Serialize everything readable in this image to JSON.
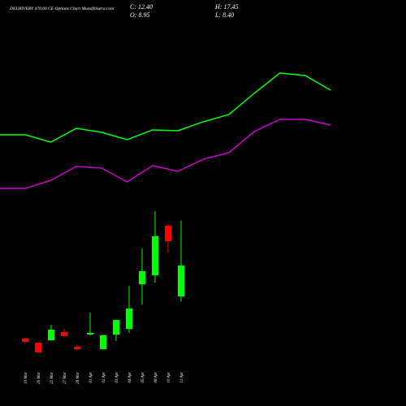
{
  "chart_data": [
    {
      "type": "candlestick",
      "title": "DELHIVERY 470.00 CE Options Chart MunafaSutra.com",
      "info": [
        "C: 12.40",
        "H: 17.45",
        "O: 8.95",
        "L: 8.40"
      ],
      "categories": [
        "19 Mar",
        "20 Mar",
        "22 Mar",
        "27 Mar",
        "28 Mar",
        "01 Apr",
        "02 Apr",
        "03 Apr",
        "04 Apr",
        "05 Apr",
        "08 Apr",
        "10 Apr",
        "12 Apr"
      ],
      "open": [
        4.22,
        3.77,
        4.04,
        4.95,
        3.31,
        4.68,
        3.04,
        4.68,
        5.31,
        10.31,
        11.31,
        16.86,
        8.95
      ],
      "high": [
        4.31,
        3.86,
        5.77,
        5.31,
        3.5,
        7.13,
        4.68,
        6.31,
        10.13,
        14.31,
        18.5,
        17.04,
        17.45
      ],
      "low": [
        3.77,
        2.68,
        4.04,
        4.5,
        2.95,
        4.59,
        3.04,
        3.95,
        4.86,
        8.04,
        10.5,
        13.86,
        8.4
      ],
      "close": [
        3.86,
        2.68,
        5.22,
        4.5,
        3.04,
        4.86,
        4.59,
        6.31,
        7.59,
        11.77,
        15.68,
        15.13,
        12.4
      ],
      "up_color": "#00ff00",
      "down_color": "#ff0000",
      "ylim": [
        -1.5,
        42.13
      ]
    },
    {
      "type": "line",
      "series": [
        {
          "color": "#00ff00",
          "values": [
            27.04,
            27.04,
            26.22,
            27.77,
            27.31,
            26.5,
            27.59,
            27.5,
            28.5,
            29.31,
            31.68,
            33.95,
            33.68,
            32.04
          ]
        },
        {
          "color": "#cc00cc",
          "values": [
            21.04,
            21.04,
            21.95,
            23.5,
            23.31,
            21.77,
            23.59,
            22.95,
            24.31,
            25.04,
            27.4,
            28.77,
            28.77,
            28.13
          ]
        }
      ],
      "ylim": [
        -1.5,
        42.13
      ]
    }
  ]
}
